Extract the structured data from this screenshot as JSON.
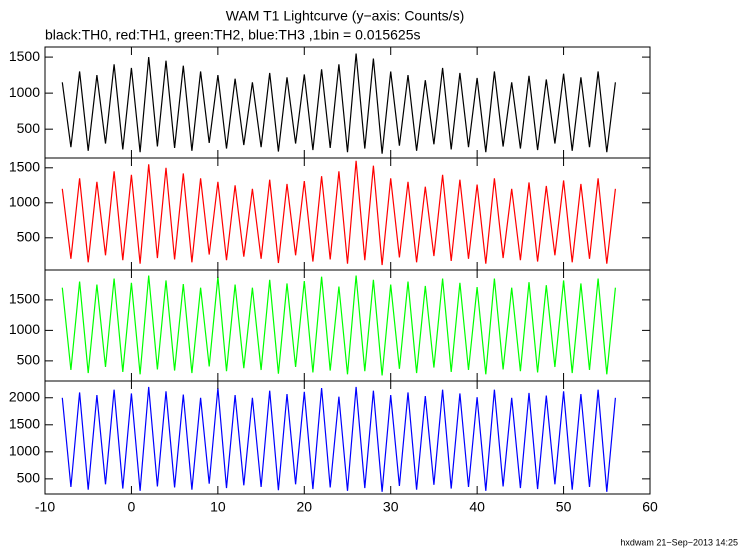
{
  "title": "WAM T1 Lightcurve (y−axis: Counts/s)",
  "subtitle": "black:TH0, red:TH1, green:TH2, blue:TH3 ,1bin = 0.015625s",
  "footer": "hxdwam 21−Sep−2013 14:25",
  "chart_data": [
    {
      "type": "line",
      "color": "#000000",
      "ylim": [
        100,
        1640
      ],
      "yticks": [
        500,
        1000,
        1500
      ],
      "xlim": [
        -10,
        60
      ],
      "x": [
        -8,
        -7,
        -6,
        -5,
        -4,
        -3,
        -2,
        -1,
        0,
        1,
        2,
        3,
        4,
        5,
        6,
        7,
        8,
        9,
        10,
        11,
        12,
        13,
        14,
        15,
        16,
        17,
        18,
        19,
        20,
        21,
        22,
        23,
        24,
        25,
        26,
        27,
        28,
        29,
        30,
        31,
        32,
        33,
        34,
        35,
        36,
        37,
        38,
        39,
        40,
        41,
        42,
        43,
        44,
        45,
        46,
        47,
        48,
        49,
        50,
        51,
        52,
        53,
        54,
        55,
        56
      ],
      "values": [
        1150,
        250,
        1300,
        200,
        1250,
        300,
        1400,
        220,
        1350,
        180,
        1500,
        260,
        1450,
        240,
        1380,
        200,
        1300,
        310,
        1250,
        230,
        1200,
        280,
        1150,
        250,
        1280,
        190,
        1220,
        300,
        1260,
        210,
        1330,
        240,
        1400,
        180,
        1550,
        230,
        1480,
        160,
        1300,
        270,
        1250,
        200,
        1180,
        290,
        1350,
        220,
        1280,
        250,
        1210,
        180,
        1300,
        260,
        1150,
        230,
        1240,
        210,
        1190,
        300,
        1270,
        200,
        1220,
        250,
        1300,
        180,
        1150
      ]
    },
    {
      "type": "line",
      "color": "#ff0000",
      "ylim": [
        40,
        1640
      ],
      "yticks": [
        500,
        1000,
        1500
      ],
      "xlim": [
        -10,
        60
      ],
      "x": [
        -8,
        -7,
        -6,
        -5,
        -4,
        -3,
        -2,
        -1,
        0,
        1,
        2,
        3,
        4,
        5,
        6,
        7,
        8,
        9,
        10,
        11,
        12,
        13,
        14,
        15,
        16,
        17,
        18,
        19,
        20,
        21,
        22,
        23,
        24,
        25,
        26,
        27,
        28,
        29,
        30,
        31,
        32,
        33,
        34,
        35,
        36,
        37,
        38,
        39,
        40,
        41,
        42,
        43,
        44,
        45,
        46,
        47,
        48,
        49,
        50,
        51,
        52,
        53,
        54,
        55,
        56
      ],
      "values": [
        1200,
        200,
        1350,
        150,
        1300,
        250,
        1450,
        180,
        1400,
        130,
        1550,
        210,
        1500,
        190,
        1420,
        150,
        1350,
        260,
        1300,
        180,
        1250,
        230,
        1200,
        200,
        1330,
        140,
        1270,
        250,
        1310,
        160,
        1380,
        190,
        1450,
        130,
        1600,
        180,
        1530,
        110,
        1350,
        220,
        1300,
        150,
        1230,
        240,
        1400,
        170,
        1330,
        200,
        1260,
        130,
        1350,
        210,
        1200,
        180,
        1290,
        160,
        1240,
        250,
        1320,
        150,
        1270,
        200,
        1350,
        130,
        1200
      ]
    },
    {
      "type": "line",
      "color": "#00ff00",
      "ylim": [
        170,
        1990
      ],
      "yticks": [
        500,
        1000,
        1500
      ],
      "xlim": [
        -10,
        60
      ],
      "x": [
        -8,
        -7,
        -6,
        -5,
        -4,
        -3,
        -2,
        -1,
        0,
        1,
        2,
        3,
        4,
        5,
        6,
        7,
        8,
        9,
        10,
        11,
        12,
        13,
        14,
        15,
        16,
        17,
        18,
        19,
        20,
        21,
        22,
        23,
        24,
        25,
        26,
        27,
        28,
        29,
        30,
        31,
        32,
        33,
        34,
        35,
        36,
        37,
        38,
        39,
        40,
        41,
        42,
        43,
        44,
        45,
        46,
        47,
        48,
        49,
        50,
        51,
        52,
        53,
        54,
        55,
        56
      ],
      "values": [
        1700,
        350,
        1800,
        300,
        1750,
        400,
        1850,
        320,
        1780,
        280,
        1900,
        360,
        1820,
        340,
        1760,
        300,
        1700,
        410,
        1880,
        330,
        1750,
        380,
        1700,
        350,
        1830,
        290,
        1770,
        400,
        1810,
        310,
        1880,
        340,
        1720,
        280,
        1900,
        330,
        1830,
        260,
        1750,
        370,
        1800,
        300,
        1730,
        390,
        1850,
        320,
        1780,
        350,
        1710,
        280,
        1850,
        360,
        1700,
        330,
        1790,
        310,
        1740,
        400,
        1820,
        300,
        1770,
        350,
        1850,
        280,
        1700
      ]
    },
    {
      "type": "line",
      "color": "#0000ff",
      "ylim": [
        220,
        2310
      ],
      "yticks": [
        500,
        1000,
        1500,
        2000
      ],
      "xlim": [
        -10,
        60
      ],
      "xticks": [
        -10,
        0,
        10,
        20,
        30,
        40,
        50,
        60
      ],
      "x": [
        -8,
        -7,
        -6,
        -5,
        -4,
        -3,
        -2,
        -1,
        0,
        1,
        2,
        3,
        4,
        5,
        6,
        7,
        8,
        9,
        10,
        11,
        12,
        13,
        14,
        15,
        16,
        17,
        18,
        19,
        20,
        21,
        22,
        23,
        24,
        25,
        26,
        27,
        28,
        29,
        30,
        31,
        32,
        33,
        34,
        35,
        36,
        37,
        38,
        39,
        40,
        41,
        42,
        43,
        44,
        45,
        46,
        47,
        48,
        49,
        50,
        51,
        52,
        53,
        54,
        55,
        56
      ],
      "values": [
        2000,
        350,
        2100,
        300,
        2050,
        400,
        2150,
        320,
        2080,
        280,
        2200,
        360,
        2120,
        340,
        2060,
        300,
        2000,
        410,
        2180,
        330,
        2050,
        380,
        2000,
        350,
        2130,
        290,
        2070,
        400,
        2110,
        310,
        2180,
        340,
        2020,
        280,
        2200,
        330,
        2130,
        260,
        2050,
        370,
        2100,
        300,
        2030,
        390,
        2150,
        320,
        2080,
        350,
        2010,
        280,
        2150,
        360,
        2000,
        330,
        2090,
        310,
        2040,
        400,
        2120,
        300,
        2070,
        350,
        2150,
        260,
        2000
      ]
    }
  ]
}
